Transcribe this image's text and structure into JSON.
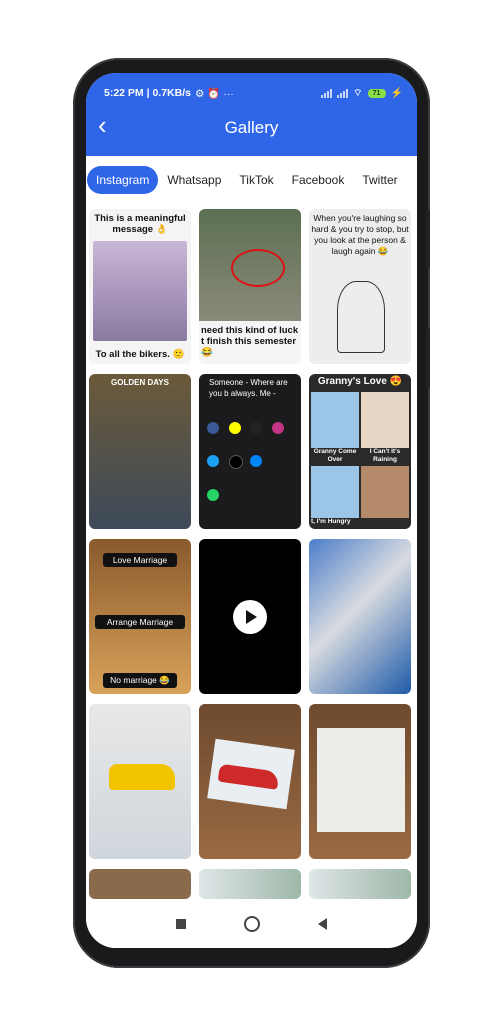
{
  "status_bar": {
    "time_info": "5:22 PM | 0.7KB/s",
    "extra_icons": "⚙ ⏰ ···",
    "battery": "71"
  },
  "appbar": {
    "title": "Gallery"
  },
  "tabs": [
    {
      "label": "Instagram",
      "active": true
    },
    {
      "label": "Whatsapp",
      "active": false
    },
    {
      "label": "TikTok",
      "active": false
    },
    {
      "label": "Facebook",
      "active": false
    },
    {
      "label": "Twitter",
      "active": false
    }
  ],
  "gallery": {
    "items": [
      {
        "top": "This is a meaningful message 👌",
        "bottom": "To all the bikers. 🙂"
      },
      {
        "bottom": "need this kind of luck t finish this semester 😂"
      },
      {
        "top": "When you're laughing so hard & you try to stop, but you look at the person & laugh again 😂"
      },
      {
        "top": "GOLDEN DAYS"
      },
      {
        "top": "Someone - Where are you b always. Me -"
      },
      {
        "top": "Granny's Love 😍",
        "mid1": "Granny Come Over",
        "mid2": "I Can't It's Raining",
        "bottom": "t, I'm Hungry"
      },
      {
        "l1": "Love Marriage",
        "l2": "Arrange Marriage",
        "l3": "No marriage 😂"
      },
      {
        "video": true
      },
      {},
      {},
      {},
      {},
      {},
      {},
      {}
    ]
  },
  "colors": {
    "accent": "#2f66e8"
  }
}
